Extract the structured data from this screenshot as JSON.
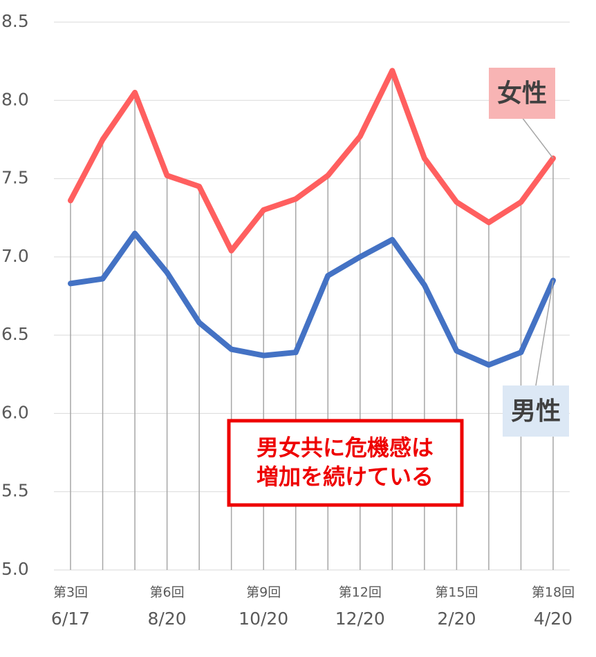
{
  "chart_data": {
    "type": "line",
    "categories": [
      "第3回",
      null,
      null,
      "第6回",
      null,
      null,
      "第9回",
      null,
      null,
      "第12回",
      null,
      null,
      "第15回",
      null,
      null,
      "第18回"
    ],
    "dates": [
      "6/17",
      null,
      null,
      "8/20",
      null,
      null,
      "10/20",
      null,
      null,
      "12/20",
      null,
      null,
      "2/20",
      null,
      null,
      "4/20"
    ],
    "series": [
      {
        "name": "女性",
        "color": "#ff5f5f",
        "label_bg": "#f8b4b4",
        "values": [
          7.36,
          7.75,
          8.05,
          7.52,
          7.45,
          7.04,
          7.3,
          7.37,
          7.52,
          7.77,
          8.19,
          7.63,
          7.35,
          7.22,
          7.35,
          7.63
        ]
      },
      {
        "name": "男性",
        "color": "#4472c4",
        "label_bg": "#dce8f5",
        "values": [
          6.83,
          6.86,
          7.15,
          6.9,
          6.58,
          6.41,
          6.37,
          6.39,
          6.88,
          7.0,
          7.11,
          6.82,
          6.4,
          6.31,
          6.39,
          6.85
        ]
      }
    ],
    "ylim": [
      5.0,
      8.5
    ],
    "yticks": [
      {
        "value": 5,
        "label": "5.0"
      },
      5.5,
      {
        "value": 6,
        "label": "6.0"
      },
      6.5,
      {
        "value": 7,
        "label": "7.0"
      },
      7.5,
      {
        "value": 8,
        "label": "8.0"
      },
      8.5
    ],
    "grid": true,
    "annotation": [
      "男女共に危機感は",
      "増加を続けている"
    ]
  }
}
